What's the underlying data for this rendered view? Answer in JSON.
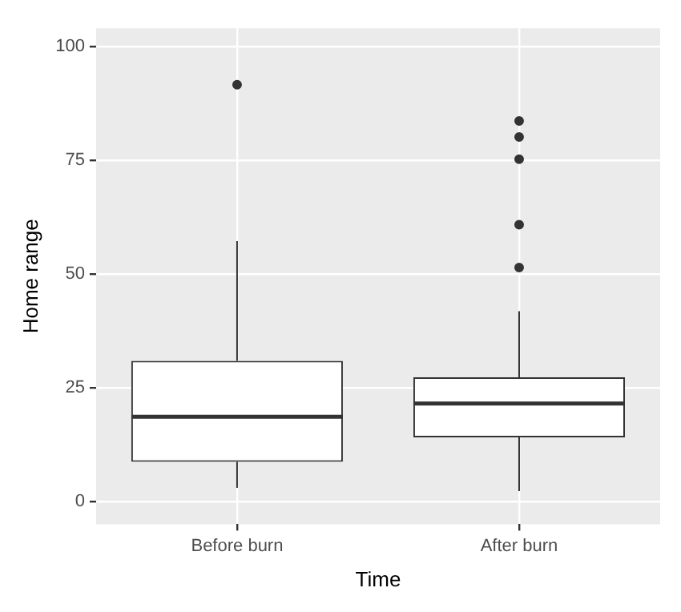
{
  "chart_data": {
    "type": "box",
    "xlabel": "Time",
    "ylabel": "Home range",
    "categories": [
      "Before burn",
      "After burn"
    ],
    "boxes": [
      {
        "low": 3,
        "q1": 8.7,
        "median": 18.6,
        "q3": 30.9,
        "high": 57.2,
        "outliers": [
          91.6
        ]
      },
      {
        "low": 2.3,
        "q1": 14.1,
        "median": 21.5,
        "q3": 27.3,
        "high": 41.8,
        "outliers": [
          83.6,
          80.1,
          75.2,
          60.8,
          51.4
        ]
      }
    ],
    "ylim": [
      -5,
      104
    ],
    "yticks": [
      0,
      25,
      50,
      75,
      100
    ],
    "grid": true,
    "legend": false
  }
}
